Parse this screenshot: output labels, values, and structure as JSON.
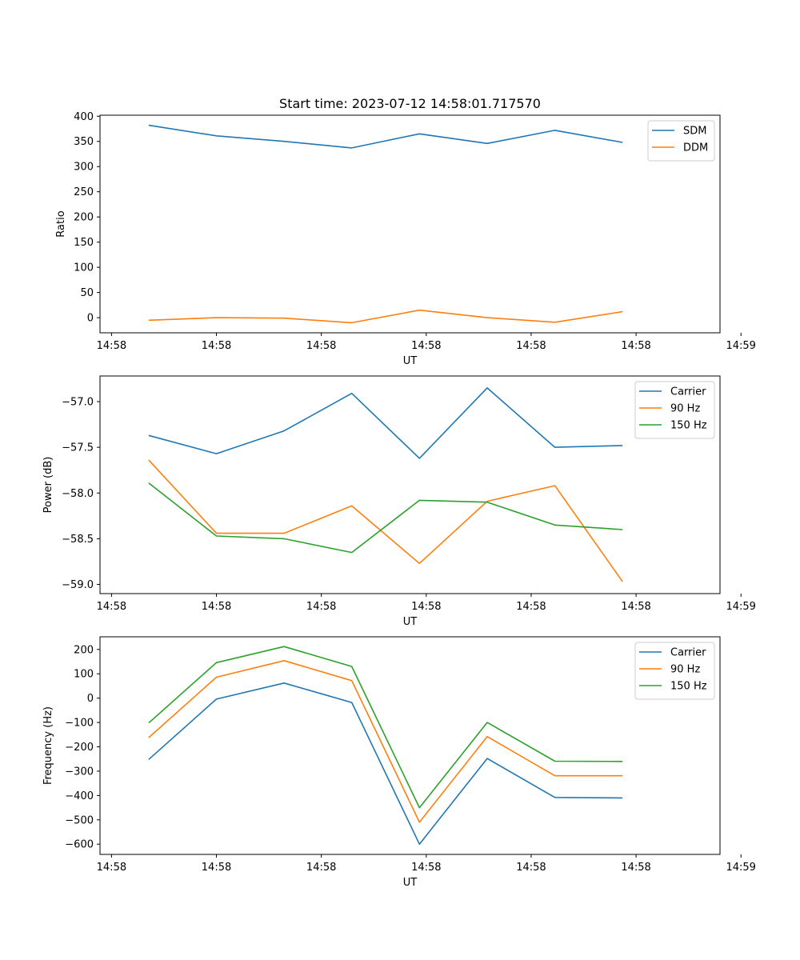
{
  "title": "Start time: 2023-07-12 14:58:01.717570",
  "colors": {
    "series1": "#1f77b4",
    "series2": "#ff7f0e",
    "series3": "#2ca02c",
    "axis": "#000000",
    "legend_border": "#cccccc"
  },
  "chart_data": [
    {
      "type": "line",
      "title": "Start time: 2023-07-12 14:58:01.717570",
      "xlabel": "UT",
      "ylabel": "Ratio",
      "x": [
        1,
        2,
        3,
        4,
        5,
        6,
        7,
        8
      ],
      "xlim": [
        0.28,
        9.44
      ],
      "xticks": [
        0.45,
        2.0,
        3.55,
        5.1,
        6.65,
        8.2,
        9.75
      ],
      "xtick_labels": [
        "14:58",
        "14:58",
        "14:58",
        "14:58",
        "14:58",
        "14:58",
        "14:59"
      ],
      "ylim": [
        -30,
        402
      ],
      "yticks": [
        0,
        50,
        100,
        150,
        200,
        250,
        300,
        350,
        400
      ],
      "ytick_labels": [
        "0",
        "50",
        "100",
        "150",
        "200",
        "250",
        "300",
        "350",
        "400"
      ],
      "legend_position": "top-right",
      "series": [
        {
          "name": "SDM",
          "color": "#1f77b4",
          "values": [
            382,
            361,
            350,
            337,
            365,
            346,
            372,
            348
          ]
        },
        {
          "name": "DDM",
          "color": "#ff7f0e",
          "values": [
            -5,
            0,
            -1,
            -10,
            15,
            0,
            -9,
            12
          ]
        }
      ]
    },
    {
      "type": "line",
      "title": "",
      "xlabel": "UT",
      "ylabel": "Power (dB)",
      "x": [
        1,
        2,
        3,
        4,
        5,
        6,
        7,
        8
      ],
      "xlim": [
        0.28,
        9.44
      ],
      "xticks": [
        0.45,
        2.0,
        3.55,
        5.1,
        6.65,
        8.2,
        9.75
      ],
      "xtick_labels": [
        "14:58",
        "14:58",
        "14:58",
        "14:58",
        "14:58",
        "14:58",
        "14:59"
      ],
      "ylim": [
        -59.1,
        -56.72
      ],
      "yticks": [
        -59.0,
        -58.5,
        -58.0,
        -57.5,
        -57.0
      ],
      "ytick_labels": [
        "−59.0",
        "−58.5",
        "−58.0",
        "−57.5",
        "−57.0"
      ],
      "legend_position": "top-right",
      "series": [
        {
          "name": "Carrier",
          "color": "#1f77b4",
          "values": [
            -57.37,
            -57.57,
            -57.32,
            -56.91,
            -57.62,
            -56.85,
            -57.5,
            -57.48
          ]
        },
        {
          "name": "90 Hz",
          "color": "#ff7f0e",
          "values": [
            -57.64,
            -58.44,
            -58.44,
            -58.14,
            -58.77,
            -58.09,
            -57.92,
            -58.97
          ]
        },
        {
          "name": "150 Hz",
          "color": "#2ca02c",
          "values": [
            -57.89,
            -58.47,
            -58.5,
            -58.65,
            -58.08,
            -58.1,
            -58.35,
            -58.4
          ]
        }
      ]
    },
    {
      "type": "line",
      "title": "",
      "xlabel": "UT",
      "ylabel": "Frequency (Hz)",
      "x": [
        1,
        2,
        3,
        4,
        5,
        6,
        7,
        8
      ],
      "xlim": [
        0.28,
        9.44
      ],
      "xticks": [
        0.45,
        2.0,
        3.55,
        5.1,
        6.65,
        8.2,
        9.75
      ],
      "xtick_labels": [
        "14:58",
        "14:58",
        "14:58",
        "14:58",
        "14:58",
        "14:58",
        "14:59"
      ],
      "ylim": [
        -642,
        252
      ],
      "yticks": [
        -600,
        -500,
        -400,
        -300,
        -200,
        -100,
        0,
        100,
        200
      ],
      "ytick_labels": [
        "−600",
        "−500",
        "−400",
        "−300",
        "−200",
        "−100",
        "0",
        "100",
        "200"
      ],
      "legend_position": "top-right",
      "series": [
        {
          "name": "Carrier",
          "color": "#1f77b4",
          "values": [
            -252,
            -4,
            62,
            -18,
            -600,
            -248,
            -408,
            -410
          ]
        },
        {
          "name": "90 Hz",
          "color": "#ff7f0e",
          "values": [
            -162,
            86,
            154,
            72,
            -510,
            -158,
            -319,
            -319
          ]
        },
        {
          "name": "150 Hz",
          "color": "#2ca02c",
          "values": [
            -102,
            146,
            212,
            130,
            -450,
            -100,
            -259,
            -260
          ]
        }
      ]
    }
  ]
}
